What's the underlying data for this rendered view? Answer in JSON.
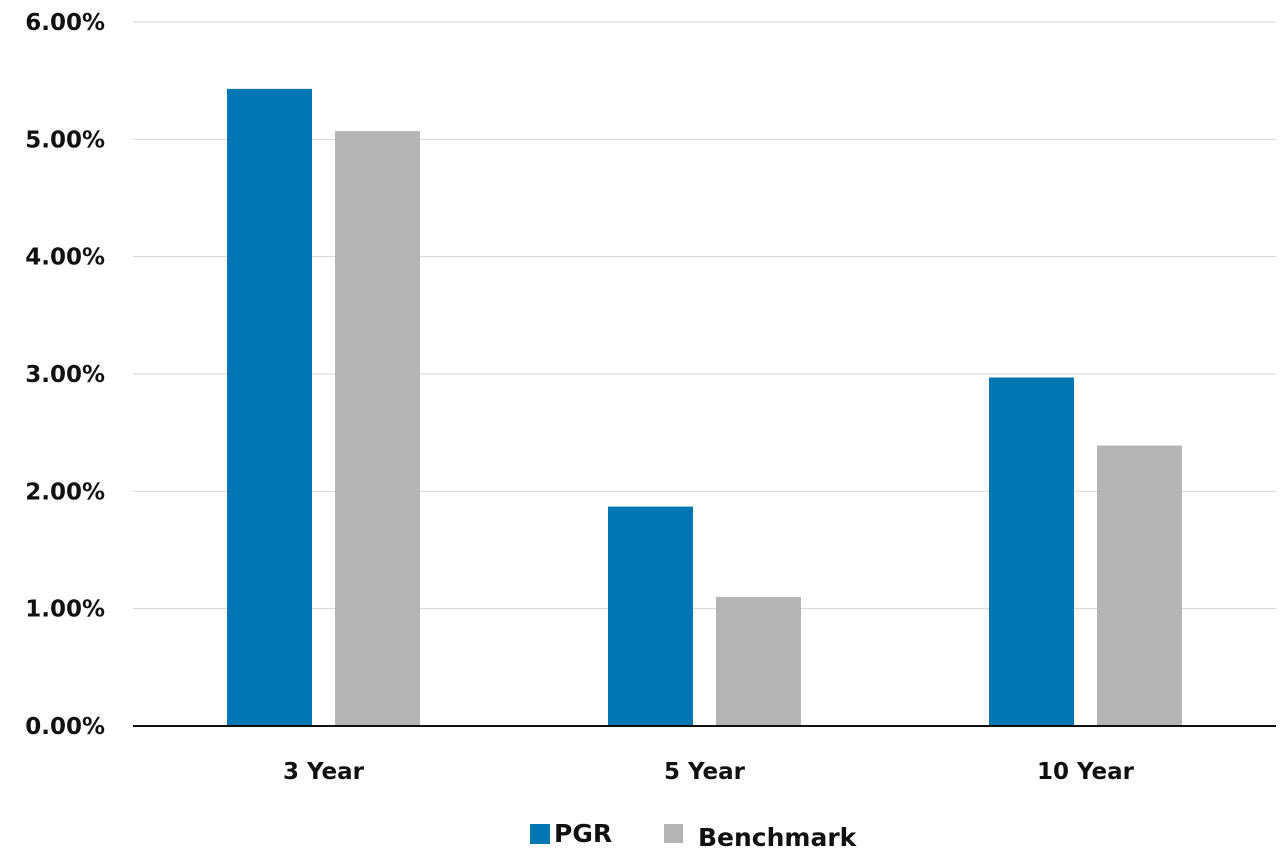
{
  "chart_data": {
    "type": "bar",
    "categories": [
      "3 Year",
      "5 Year",
      "10 Year"
    ],
    "series": [
      {
        "name": "PGR",
        "values": [
          5.43,
          1.87,
          2.97
        ],
        "color": "#0077b3"
      },
      {
        "name": "Benchmark",
        "values": [
          5.07,
          1.1,
          2.39
        ],
        "color": "#b5b5b5"
      }
    ],
    "ylim": [
      0,
      6
    ],
    "yticks": [
      0,
      1,
      2,
      3,
      4,
      5,
      6
    ],
    "ytick_labels": [
      "0.00%",
      "1.00%",
      "2.00%",
      "3.00%",
      "4.00%",
      "5.00%",
      "6.00%"
    ],
    "grid": true,
    "legend_position": "bottom-center",
    "title": "",
    "xlabel": "",
    "ylabel": ""
  }
}
